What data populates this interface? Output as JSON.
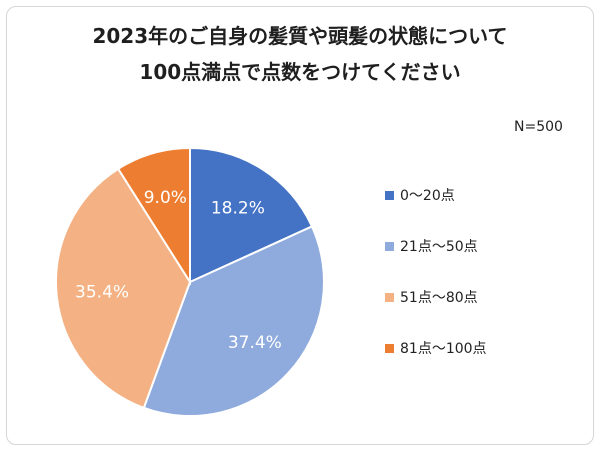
{
  "chart_data": {
    "type": "pie",
    "title": [
      "2023年のご自身の髪質や頭髪の状態について",
      "100点満点で点数をつけてください"
    ],
    "sample_note": "N=500",
    "categories": [
      "0～20点",
      "21点～50点",
      "51点～80点",
      "81点～100点"
    ],
    "values": [
      18.2,
      37.4,
      35.4,
      9.0
    ],
    "labels": [
      "18.2%",
      "37.4%",
      "35.4%",
      "9.0%"
    ],
    "colors": [
      "#4472c4",
      "#8faadc",
      "#f4b183",
      "#ed7d31"
    ],
    "legend_position": "right",
    "start": "12 o'clock, clockwise"
  }
}
